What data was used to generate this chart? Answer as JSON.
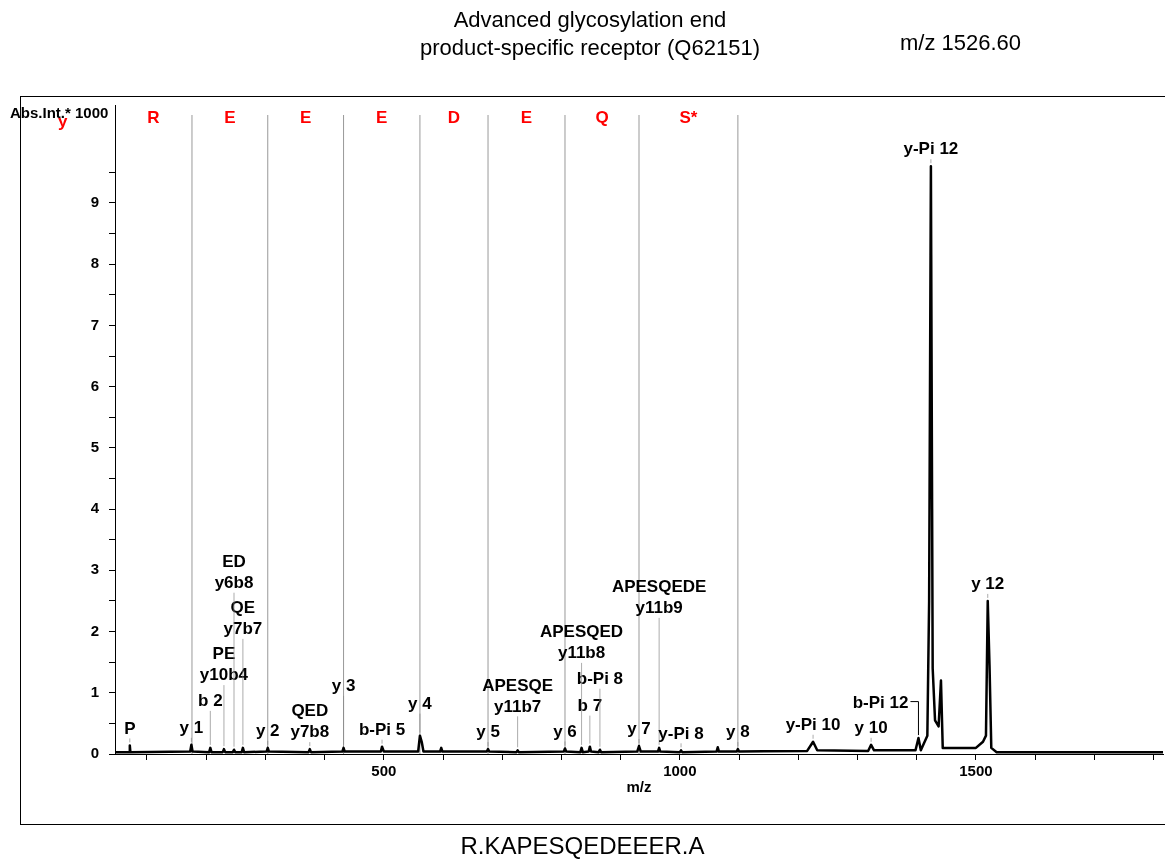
{
  "chart_data": {
    "type": "line",
    "title": "Advanced glycosylation end\nproduct-specific receptor (Q62151)",
    "subtitle": "m/z 1526.60",
    "xlabel": "m/z",
    "ylabel": "Abs.Int.* 1000",
    "x": [
      46,
      70,
      71,
      72,
      173,
      175,
      177,
      205,
      207,
      209,
      228,
      230,
      232,
      245,
      247,
      249,
      260,
      262,
      264,
      302,
      304,
      306,
      373,
      375,
      377,
      430,
      432,
      434,
      495,
      497,
      500,
      558,
      561,
      564,
      567,
      595,
      597,
      599,
      674,
      676,
      678,
      724,
      726,
      728,
      804,
      806,
      808,
      832,
      834,
      836,
      846,
      848,
      850,
      863,
      865,
      867,
      928,
      931,
      934,
      963,
      965,
      967,
      1000,
      1002,
      1004,
      1062,
      1064,
      1066,
      1096,
      1098,
      1100,
      1215,
      1225,
      1232,
      1318,
      1323,
      1328,
      1398,
      1403,
      1407,
      1418,
      1421,
      1424,
      1427,
      1431,
      1437,
      1441,
      1444,
      1500,
      1512,
      1517,
      1520,
      1523,
      1526,
      1535,
      1816
    ],
    "series": [
      {
        "color": "#000000",
        "values": [
          0.03,
          0.03,
          0.14,
          0.03,
          0.04,
          0.15,
          0.04,
          0.03,
          0.1,
          0.03,
          0.03,
          0.08,
          0.03,
          0.03,
          0.07,
          0.03,
          0.03,
          0.1,
          0.03,
          0.04,
          0.1,
          0.04,
          0.03,
          0.08,
          0.03,
          0.04,
          0.1,
          0.04,
          0.04,
          0.12,
          0.04,
          0.04,
          0.3,
          0.2,
          0.04,
          0.04,
          0.1,
          0.04,
          0.04,
          0.08,
          0.04,
          0.03,
          0.06,
          0.03,
          0.04,
          0.09,
          0.04,
          0.03,
          0.1,
          0.03,
          0.04,
          0.12,
          0.04,
          0.03,
          0.07,
          0.03,
          0.04,
          0.13,
          0.04,
          0.04,
          0.1,
          0.04,
          0.03,
          0.06,
          0.03,
          0.04,
          0.11,
          0.04,
          0.04,
          0.08,
          0.04,
          0.05,
          0.2,
          0.06,
          0.05,
          0.15,
          0.06,
          0.06,
          0.26,
          0.06,
          0.3,
          2.5,
          9.6,
          1.4,
          0.55,
          0.45,
          1.2,
          0.1,
          0.1,
          0.2,
          0.3,
          2.5,
          1.45,
          0.1,
          0.03,
          0.03
        ]
      }
    ],
    "xlim": [
      46,
      1816
    ],
    "ylim": [
      0,
      10.6
    ],
    "xticks": [
      {
        "value": 100,
        "label": null
      },
      {
        "value": 200,
        "label": null
      },
      {
        "value": 300,
        "label": null
      },
      {
        "value": 400,
        "label": null
      },
      500,
      {
        "value": 600,
        "label": null
      },
      {
        "value": 700,
        "label": null
      },
      {
        "value": 800,
        "label": null
      },
      {
        "value": 900,
        "label": null
      },
      1000,
      {
        "value": 1100,
        "label": null
      },
      {
        "value": 1200,
        "label": null
      },
      {
        "value": 1300,
        "label": null
      },
      {
        "value": 1400,
        "label": null
      },
      1500,
      {
        "value": 1600,
        "label": null
      },
      {
        "value": 1700,
        "label": null
      },
      {
        "value": 1800,
        "label": null
      }
    ],
    "yticks": [
      0,
      {
        "value": 0.5,
        "label": null
      },
      1,
      {
        "value": 1.5,
        "label": null
      },
      2,
      {
        "value": 2.5,
        "label": null
      },
      3,
      {
        "value": 3.5,
        "label": null
      },
      4,
      {
        "value": 4.5,
        "label": null
      },
      5,
      {
        "value": 5.5,
        "label": null
      },
      6,
      {
        "value": 6.5,
        "label": null
      },
      7,
      {
        "value": 7.5,
        "label": null
      },
      8,
      {
        "value": 8.5,
        "label": null
      },
      9,
      {
        "value": 9.5,
        "label": null
      }
    ],
    "grid": false,
    "legend": false,
    "marker": "none",
    "line_style": "solid",
    "ref_lines": [
      {
        "axis": "x",
        "value": 176,
        "color": "#999999"
      },
      {
        "axis": "x",
        "value": 304,
        "color": "#999999"
      },
      {
        "axis": "x",
        "value": 432,
        "color": "#999999"
      },
      {
        "axis": "x",
        "value": 561,
        "color": "#999999"
      },
      {
        "axis": "x",
        "value": 676,
        "color": "#999999"
      },
      {
        "axis": "x",
        "value": 806,
        "color": "#999999"
      },
      {
        "axis": "x",
        "value": 931,
        "color": "#999999"
      },
      {
        "axis": "x",
        "value": 1098,
        "color": "#999999"
      }
    ],
    "annotations": [
      "y",
      "R",
      "E",
      "E",
      "E",
      "D",
      "E",
      "Q",
      "S*",
      {
        "text": "P",
        "x": 71,
        "y": 0.14
      },
      {
        "text": "y 1",
        "x": 175,
        "y": 0.15
      },
      {
        "text": "b 2",
        "x": 207,
        "y": 0.1
      },
      {
        "text": "PE\ny10b4",
        "x": 230,
        "y": 0.08
      },
      {
        "text": "QE\ny7b7",
        "x": 262,
        "y": 0.1
      },
      {
        "text": "ED\ny6b8",
        "x": 247,
        "y": 0.07
      },
      {
        "text": "y 2",
        "x": 304,
        "y": 0.1
      },
      {
        "text": "QED\ny7b8",
        "x": 375,
        "y": 0.08
      },
      {
        "text": "y 3",
        "x": 432,
        "y": 0.1
      },
      {
        "text": "b-Pi 5",
        "x": 497,
        "y": 0.12
      },
      {
        "text": "y 4",
        "x": 561,
        "y": 0.3
      },
      {
        "text": "y 5",
        "x": 676,
        "y": 0.08
      },
      {
        "text": "APESQE\ny11b7",
        "x": 726,
        "y": 0.06
      },
      {
        "text": "y 6",
        "x": 806,
        "y": 0.09
      },
      {
        "text": "b 7",
        "x": 848,
        "y": 0.12
      },
      {
        "text": "b-Pi 8",
        "x": 865,
        "y": 0.07
      },
      {
        "text": "APESQED\ny11b8",
        "x": 834,
        "y": 0.1
      },
      {
        "text": "y 7",
        "x": 931,
        "y": 0.13
      },
      {
        "text": "APESQEDE\ny11b9",
        "x": 965,
        "y": 0.1
      },
      {
        "text": "y-Pi 8",
        "x": 1002,
        "y": 0.06
      },
      {
        "text": "y 8",
        "x": 1098,
        "y": 0.08
      },
      {
        "text": "y-Pi 10",
        "x": 1225,
        "y": 0.2
      },
      {
        "text": "y 10",
        "x": 1323,
        "y": 0.15
      },
      {
        "text": "y-Pi 12",
        "x": 1424,
        "y": 9.6
      },
      {
        "text": "y 12",
        "x": 1520,
        "y": 2.5
      },
      {
        "text": "b-Pi 12",
        "x": 1403,
        "y": 0.26
      },
      "R.KAPESQEDEEER.A"
    ]
  }
}
